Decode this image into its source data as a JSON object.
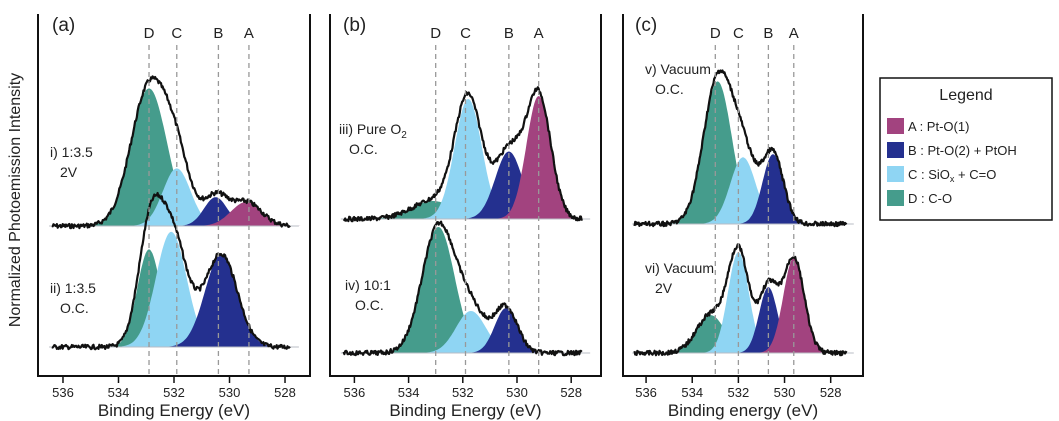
{
  "y_axis_label": "Normalized Photoemission Intensity",
  "colors": {
    "A": "#a2437f",
    "B": "#24308f",
    "C": "#8fd5f3",
    "D": "#459c8c",
    "envelope": "#111111",
    "guide": "#999999"
  },
  "legend": {
    "title": "Legend",
    "items": [
      {
        "key": "A",
        "text": "A : Pt-O(1)"
      },
      {
        "key": "B",
        "text": "B : Pt-O(2) + PtOH"
      },
      {
        "key": "C",
        "text": "C : SiO",
        "sub": "x",
        "post": " + C=O"
      },
      {
        "key": "D",
        "text": "D : C-O"
      }
    ]
  },
  "chart_data": [
    {
      "type": "area",
      "panel": "(a)",
      "xlabel": "Binding Energy (eV)",
      "xlim": [
        536.9,
        527.1
      ],
      "xticks": [
        "536",
        "534",
        "532",
        "530",
        "528"
      ],
      "peak_lines": [
        {
          "label": "D",
          "x": 532.9
        },
        {
          "label": "C",
          "x": 531.9
        },
        {
          "label": "B",
          "x": 530.4
        },
        {
          "label": "A",
          "x": 529.3
        }
      ],
      "spectra": [
        {
          "label": [
            "i) 1:3.5",
            "2V"
          ],
          "label_pos": "left",
          "peaks": [
            {
              "id": "D",
              "x": 532.9,
              "h": 0.86,
              "w": 0.65
            },
            {
              "id": "C",
              "x": 531.9,
              "h": 0.36,
              "w": 0.5
            },
            {
              "id": "B",
              "x": 530.5,
              "h": 0.18,
              "w": 0.42
            },
            {
              "id": "A",
              "x": 529.4,
              "h": 0.15,
              "w": 0.55
            }
          ]
        },
        {
          "label": [
            "ii) 1:3.5",
            "O.C."
          ],
          "label_pos": "left",
          "peaks": [
            {
              "id": "D",
              "x": 532.9,
              "h": 0.61,
              "w": 0.42
            },
            {
              "id": "C",
              "x": 532.1,
              "h": 0.72,
              "w": 0.55
            },
            {
              "id": "B",
              "x": 530.3,
              "h": 0.58,
              "w": 0.58
            }
          ]
        }
      ]
    },
    {
      "type": "area",
      "panel": "(b)",
      "xlabel": "Binding Energy (eV)",
      "xlim": [
        536.9,
        526.9
      ],
      "xticks": [
        "536",
        "534",
        "532",
        "530",
        "528"
      ],
      "peak_lines": [
        {
          "label": "D",
          "x": 533.0
        },
        {
          "label": "C",
          "x": 531.9
        },
        {
          "label": "B",
          "x": 530.3
        },
        {
          "label": "A",
          "x": 529.2
        }
      ],
      "spectra": [
        {
          "label": [
            "iii) Pure O",
            "O.C."
          ],
          "label_sub": "2",
          "label_pos": "left",
          "peaks": [
            {
              "id": "D",
              "x": 533.1,
              "h": 0.12,
              "w": 0.8
            },
            {
              "id": "C",
              "x": 531.8,
              "h": 0.8,
              "w": 0.5
            },
            {
              "id": "B",
              "x": 530.3,
              "h": 0.45,
              "w": 0.5
            },
            {
              "id": "A",
              "x": 529.2,
              "h": 0.82,
              "w": 0.45
            }
          ]
        },
        {
          "label": [
            "iv) 10:1",
            "O.C."
          ],
          "label_pos": "left",
          "peaks": [
            {
              "id": "D",
              "x": 532.9,
              "h": 0.84,
              "w": 0.6
            },
            {
              "id": "C",
              "x": 531.7,
              "h": 0.28,
              "w": 0.55
            },
            {
              "id": "B",
              "x": 530.4,
              "h": 0.3,
              "w": 0.42
            }
          ]
        }
      ]
    },
    {
      "type": "area",
      "panel": "(c)",
      "xlabel": "Binding energy (eV)",
      "xlim": [
        537.0,
        526.6
      ],
      "xticks": [
        "536",
        "534",
        "532",
        "530",
        "528"
      ],
      "peak_lines": [
        {
          "label": "D",
          "x": 533.0
        },
        {
          "label": "C",
          "x": 532.0
        },
        {
          "label": "B",
          "x": 530.7
        },
        {
          "label": "A",
          "x": 529.6
        }
      ],
      "spectra": [
        {
          "label": [
            "v) Vacuum",
            "O.C."
          ],
          "label_pos": "top",
          "peaks": [
            {
              "id": "D",
              "x": 532.9,
              "h": 0.92,
              "w": 0.62
            },
            {
              "id": "C",
              "x": 531.8,
              "h": 0.43,
              "w": 0.55
            },
            {
              "id": "B",
              "x": 530.5,
              "h": 0.45,
              "w": 0.45
            }
          ]
        },
        {
          "label": [
            "vi) Vacuum",
            "2V"
          ],
          "label_pos": "left",
          "peaks": [
            {
              "id": "D",
              "x": 533.2,
              "h": 0.27,
              "w": 0.62
            },
            {
              "id": "C",
              "x": 532.0,
              "h": 0.72,
              "w": 0.45
            },
            {
              "id": "B",
              "x": 530.7,
              "h": 0.47,
              "w": 0.4
            },
            {
              "id": "A",
              "x": 529.6,
              "h": 0.68,
              "w": 0.45
            }
          ]
        }
      ]
    }
  ]
}
